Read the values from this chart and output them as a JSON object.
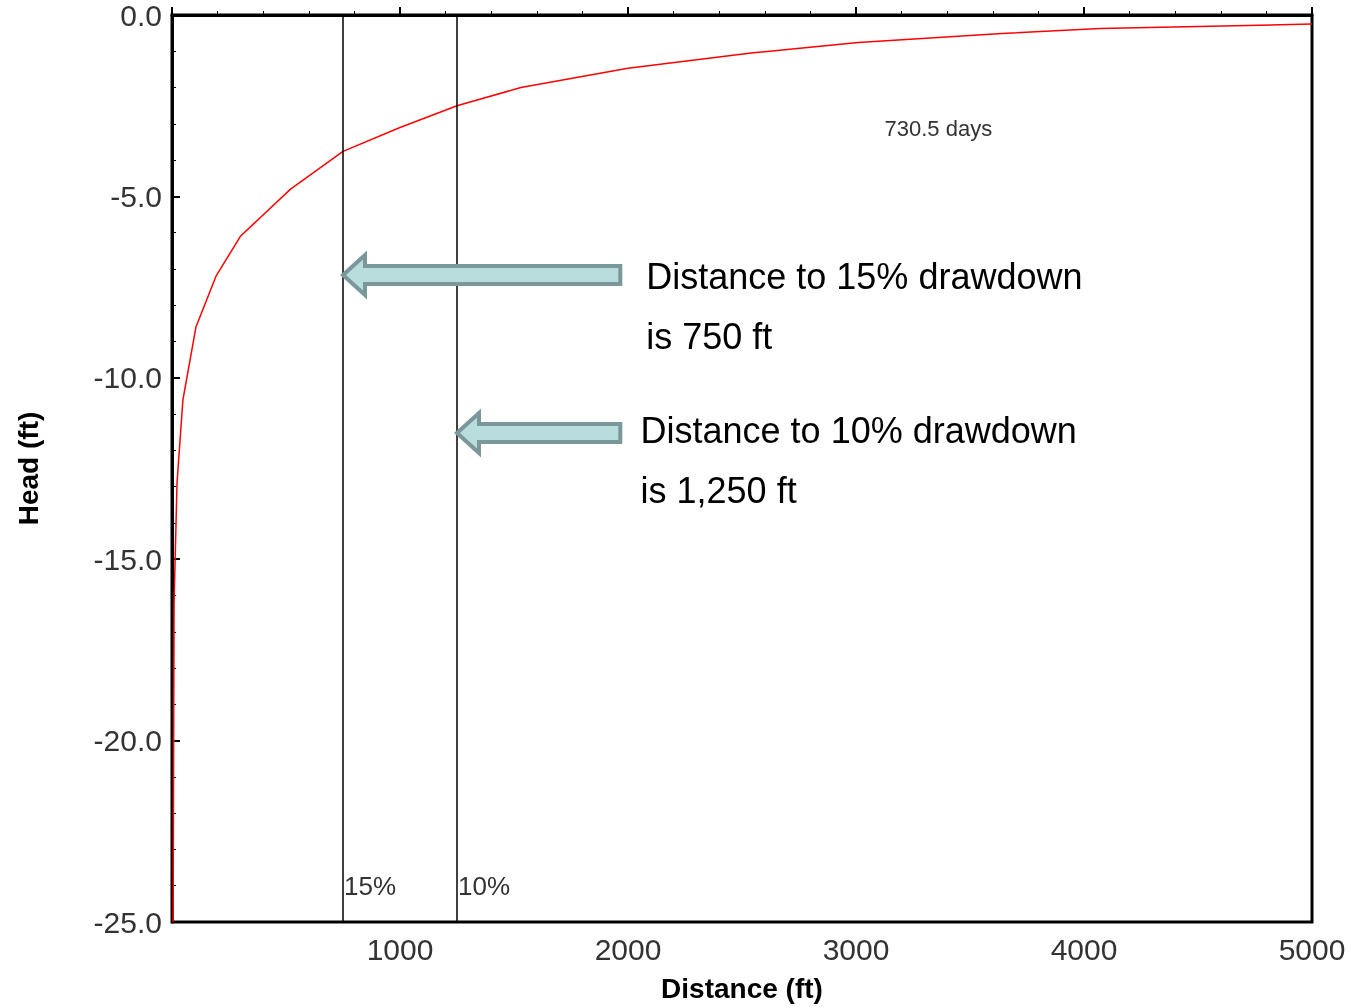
{
  "chart_data": {
    "type": "line",
    "xlabel": "Distance (ft)",
    "ylabel": "Head (ft)",
    "x": [
      5,
      9,
      22,
      48,
      105,
      193,
      300,
      520,
      750,
      1000,
      1250,
      1530,
      2000,
      2540,
      3010,
      3640,
      4070,
      5000
    ],
    "series": [
      {
        "color": "#ff0000",
        "values": [
          -25,
          -16.2,
          -12.9,
          -10.6,
          -8.6,
          -7.2,
          -6.1,
          -4.8,
          -3.76,
          -3.1,
          -2.5,
          -2.0,
          -1.47,
          -1.05,
          -0.76,
          -0.51,
          -0.37,
          -0.25
        ]
      }
    ],
    "xlim": [
      0,
      5000
    ],
    "ylim": [
      -25,
      0
    ],
    "xticks": [
      {
        "value": 0,
        "label": null
      },
      1000,
      2000,
      3000,
      4000,
      5000
    ],
    "yticks": [
      {
        "value": -25,
        "label": "-25.0"
      },
      {
        "value": -20,
        "label": "-20.0"
      },
      {
        "value": -15,
        "label": "-15.0"
      },
      {
        "value": -10,
        "label": "-10.0"
      },
      {
        "value": -5,
        "label": "-5.0"
      },
      {
        "value": 0,
        "label": "0.0"
      }
    ],
    "ref_lines": [
      {
        "axis": "x",
        "value": 750,
        "color": "#000000"
      },
      {
        "axis": "x",
        "value": 1250,
        "color": "#000000"
      }
    ],
    "annotations": [
      "730.5 days",
      "Distance to 15% drawdown is 750 ft",
      "Distance to 10% drawdown is 1,250 ft",
      {
        "text": "15%",
        "x": 750,
        "y": -24.2
      },
      {
        "text": "10%",
        "x": 1250,
        "y": -24.2
      }
    ],
    "grid": false,
    "marker": "none",
    "line_style": "solid"
  }
}
